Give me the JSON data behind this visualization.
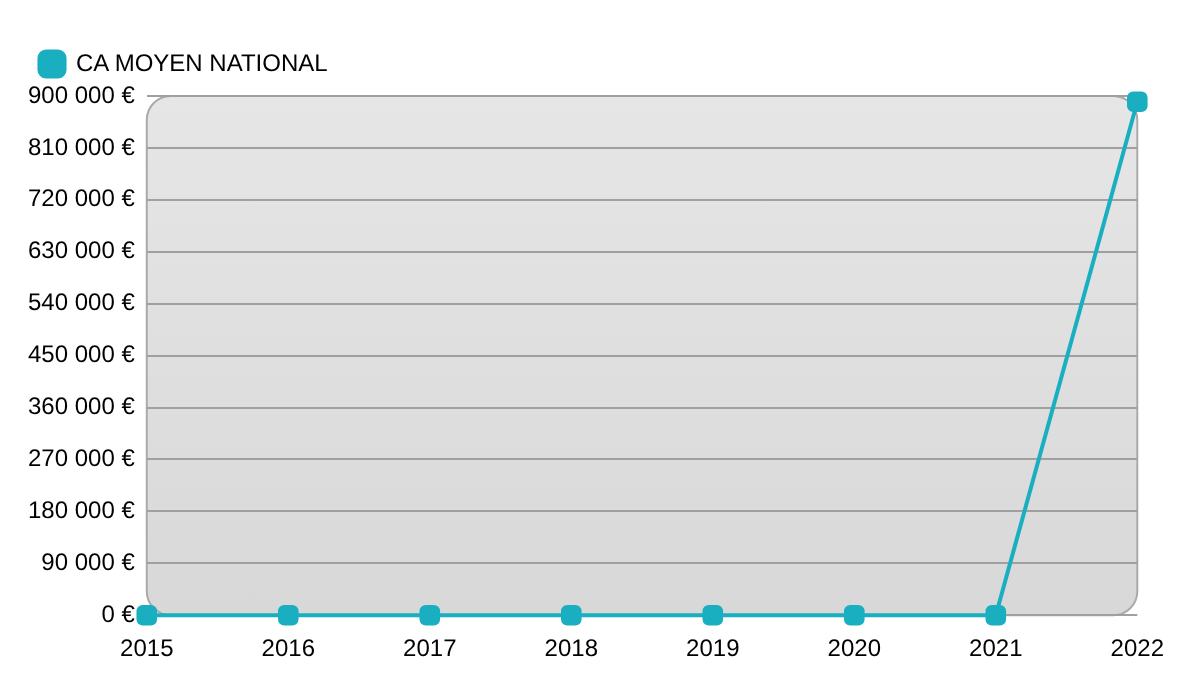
{
  "chart_data": {
    "type": "line",
    "categories": [
      "2015",
      "2016",
      "2017",
      "2018",
      "2019",
      "2020",
      "2021",
      "2022"
    ],
    "series": [
      {
        "name": "CA MOYEN NATIONAL",
        "color": "#1aafc0",
        "values": [
          0,
          0,
          0,
          0,
          0,
          0,
          0,
          890000
        ]
      }
    ],
    "ylim": [
      0,
      900000
    ],
    "yticks": [
      {
        "value": 0,
        "label": "0 €"
      },
      {
        "value": 90000,
        "label": "90 000 €"
      },
      {
        "value": 180000,
        "label": "180 000 €"
      },
      {
        "value": 270000,
        "label": "270 000 €"
      },
      {
        "value": 360000,
        "label": "360 000 €"
      },
      {
        "value": 450000,
        "label": "450 000 €"
      },
      {
        "value": 540000,
        "label": "540 000 €"
      },
      {
        "value": 630000,
        "label": "630 000 €"
      },
      {
        "value": 720000,
        "label": "720 000 €"
      },
      {
        "value": 810000,
        "label": "810 000 €"
      },
      {
        "value": 900000,
        "label": "900 000 €"
      }
    ],
    "grid": "y",
    "legend": "top left",
    "marker": "square",
    "line_style": "solid"
  }
}
